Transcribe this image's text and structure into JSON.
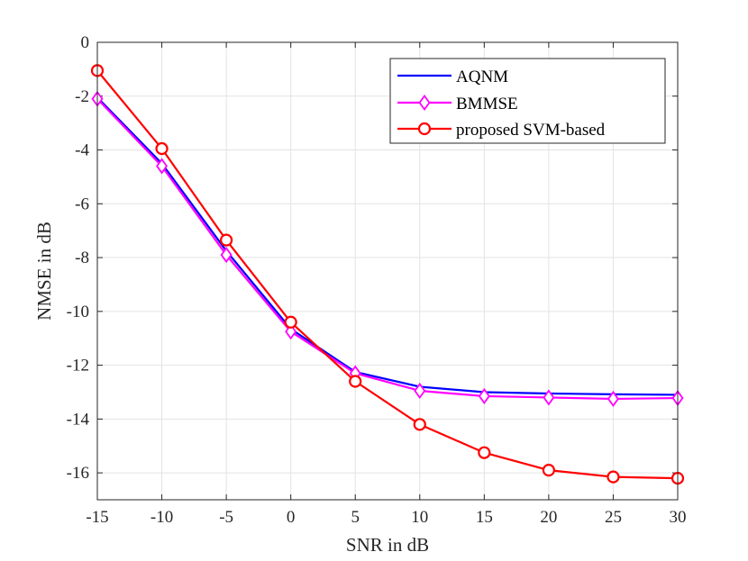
{
  "chart_data": {
    "type": "line",
    "title": "",
    "xlabel": "SNR in dB",
    "ylabel": "NMSE in dB",
    "xlim": [
      -15,
      30
    ],
    "ylim": [
      -17,
      0
    ],
    "grid": true,
    "legend_position": "top-right",
    "x": [
      -15,
      -10,
      -5,
      0,
      5,
      10,
      15,
      20,
      25,
      30
    ],
    "x_tick_labels": [
      "-15",
      "-10",
      "-5",
      "0",
      "5",
      "10",
      "15",
      "20",
      "25",
      "30"
    ],
    "y_ticks": [
      0,
      -2,
      -4,
      -6,
      -8,
      -10,
      -12,
      -14,
      -16
    ],
    "y_tick_labels": [
      "0",
      "-2",
      "-4",
      "-6",
      "-8",
      "-10",
      "-12",
      "-14",
      "-16"
    ],
    "series": [
      {
        "name": "AQNM",
        "color": "#0000ff",
        "marker": "none",
        "values": [
          -2.05,
          -4.5,
          -7.75,
          -10.65,
          -12.25,
          -12.8,
          -13.0,
          -13.05,
          -13.08,
          -13.1
        ]
      },
      {
        "name": "BMMSE",
        "color": "#ff00ff",
        "marker": "diamond",
        "values": [
          -2.1,
          -4.6,
          -7.9,
          -10.75,
          -12.3,
          -12.95,
          -13.15,
          -13.2,
          -13.25,
          -13.22
        ]
      },
      {
        "name": "proposed SVM-based",
        "color": "#ff0000",
        "marker": "circle",
        "values": [
          -1.05,
          -3.95,
          -7.35,
          -10.4,
          -12.6,
          -14.2,
          -15.25,
          -15.9,
          -16.15,
          -16.2
        ]
      }
    ]
  }
}
